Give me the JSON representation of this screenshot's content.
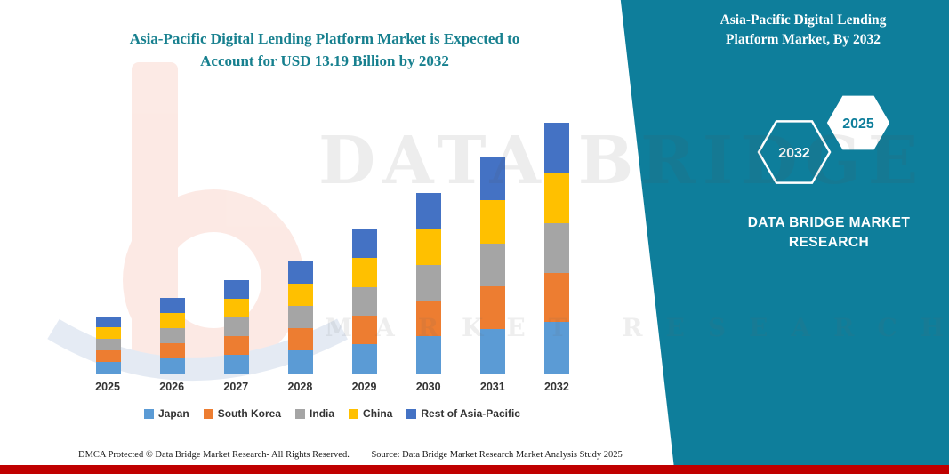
{
  "header": {
    "title": "Asia-Pacific Digital Lending Platform Market is Expected to Account for USD 13.19 Billion by 2032"
  },
  "side_panel": {
    "title": "Asia-Pacific Digital Lending Platform Market, By 2032",
    "brand": "DATA BRIDGE MARKET RESEARCH",
    "hexagon_back_label": "2032",
    "hexagon_front_label": "2025",
    "panel_color": "#0E7E9B"
  },
  "watermark": {
    "primary": "DATA BRIDGE",
    "secondary": "MARKET RESEARCH"
  },
  "footer": {
    "left": "DMCA Protected © Data Bridge Market Research-  All Rights Reserved.",
    "right": "Source: Data Bridge Market Research  Market Analysis Study 2025"
  },
  "colors": {
    "title_teal": "#17808F",
    "panel_teal": "#0E7E9B",
    "footer_red": "#C00000"
  },
  "chart_data": {
    "type": "bar",
    "stacked": true,
    "title": "Asia-Pacific Digital Lending Platform Market is Expected to Account for USD 13.19 Billion by 2032",
    "unit": "USD Billion",
    "categories": [
      "2025",
      "2026",
      "2027",
      "2028",
      "2029",
      "2030",
      "2031",
      "2032"
    ],
    "series": [
      {
        "name": "Japan",
        "color": "#5B9BD5",
        "values": [
          0.62,
          0.82,
          1.0,
          1.2,
          1.55,
          1.95,
          2.33,
          2.7
        ]
      },
      {
        "name": "South Korea",
        "color": "#ED7D31",
        "values": [
          0.6,
          0.79,
          0.97,
          1.17,
          1.5,
          1.88,
          2.26,
          2.61
        ]
      },
      {
        "name": "India",
        "color": "#A5A5A5",
        "values": [
          0.6,
          0.79,
          0.97,
          1.17,
          1.5,
          1.88,
          2.26,
          2.61
        ]
      },
      {
        "name": "China",
        "color": "#FFC000",
        "values": [
          0.6,
          0.8,
          0.98,
          1.18,
          1.52,
          1.9,
          2.28,
          2.64
        ]
      },
      {
        "name": "Rest of Asia-Pacific",
        "color": "#4472C4",
        "values": [
          0.58,
          0.8,
          0.98,
          1.18,
          1.53,
          1.89,
          2.27,
          2.63
        ]
      }
    ],
    "totals": [
      3.0,
      4.0,
      4.9,
      5.9,
      7.6,
      9.5,
      11.4,
      13.19
    ],
    "ylim": [
      0,
      14
    ],
    "grid": false,
    "y_axis_labels_visible": false,
    "legend_position": "bottom"
  }
}
